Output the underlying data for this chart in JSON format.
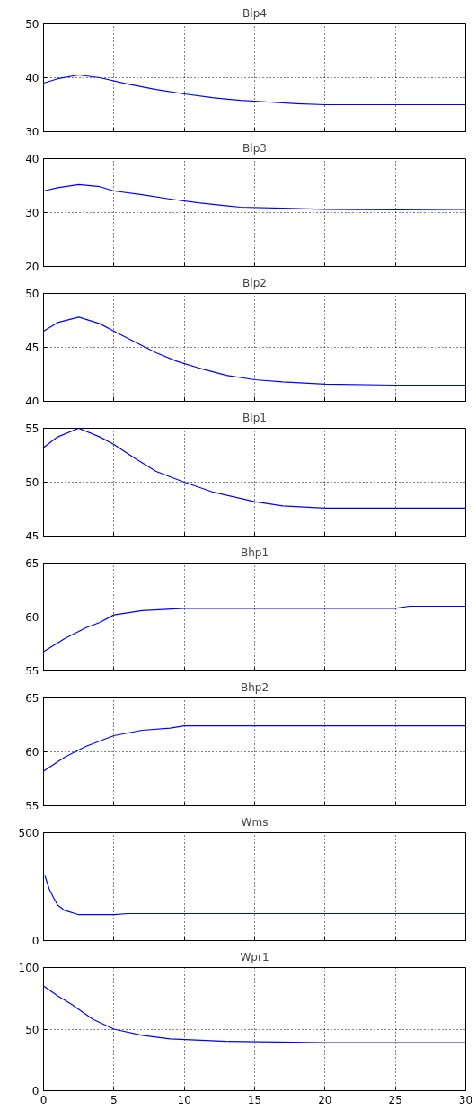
{
  "chart_data": [
    {
      "type": "line",
      "title": "Blp4",
      "xlim": [
        0,
        30
      ],
      "ylim": [
        30,
        50
      ],
      "xticks": [
        0,
        5,
        10,
        15,
        20,
        25,
        30
      ],
      "yticks": [
        30,
        40,
        50
      ],
      "grid": true,
      "tick_labels": "y",
      "series": [
        {
          "color": "#0000ff",
          "x": [
            0,
            1,
            2.5,
            4,
            6,
            8,
            10,
            12,
            14,
            16,
            18,
            20,
            25,
            30
          ],
          "values": [
            39,
            39.8,
            40.5,
            40,
            38.8,
            37.8,
            37,
            36.3,
            35.8,
            35.5,
            35.2,
            35,
            35,
            35
          ]
        }
      ]
    },
    {
      "type": "line",
      "title": "Blp3",
      "xlim": [
        0,
        30
      ],
      "ylim": [
        20,
        40
      ],
      "xticks": [
        0,
        5,
        10,
        15,
        20,
        25,
        30
      ],
      "yticks": [
        20,
        30,
        40
      ],
      "grid": true,
      "tick_labels": "y",
      "series": [
        {
          "color": "#0000ff",
          "x": [
            0,
            1,
            2.5,
            4,
            5,
            7,
            9,
            11,
            14,
            17,
            20,
            25,
            30
          ],
          "values": [
            34,
            34.6,
            35.2,
            34.8,
            34,
            33.3,
            32.5,
            31.8,
            31,
            30.8,
            30.6,
            30.5,
            30.6
          ]
        }
      ]
    },
    {
      "type": "line",
      "title": "Blp2",
      "xlim": [
        0,
        30
      ],
      "ylim": [
        40,
        50
      ],
      "xticks": [
        0,
        5,
        10,
        15,
        20,
        25,
        30
      ],
      "yticks": [
        40,
        45,
        50
      ],
      "grid": true,
      "tick_labels": "y",
      "series": [
        {
          "color": "#0000ff",
          "x": [
            0,
            1,
            2.5,
            4,
            5,
            6.5,
            8,
            9.5,
            11,
            13,
            15,
            17,
            20,
            25,
            30
          ],
          "values": [
            46.5,
            47.3,
            47.8,
            47.2,
            46.5,
            45.5,
            44.5,
            43.7,
            43.1,
            42.4,
            42,
            41.8,
            41.6,
            41.5,
            41.5
          ]
        }
      ]
    },
    {
      "type": "line",
      "title": "Blp1",
      "xlim": [
        0,
        30
      ],
      "ylim": [
        45,
        55
      ],
      "xticks": [
        0,
        5,
        10,
        15,
        20,
        25,
        30
      ],
      "yticks": [
        45,
        50,
        55
      ],
      "grid": true,
      "tick_labels": "y",
      "series": [
        {
          "color": "#0000ff",
          "x": [
            0,
            1,
            2.5,
            4,
            5,
            6.5,
            8,
            10,
            12,
            15,
            17,
            20,
            25,
            30
          ],
          "values": [
            53.2,
            54.2,
            55,
            54.2,
            53.5,
            52.2,
            51,
            50,
            49.1,
            48.2,
            47.8,
            47.6,
            47.6,
            47.6
          ]
        }
      ]
    },
    {
      "type": "line",
      "title": "Bhp1",
      "xlim": [
        0,
        30
      ],
      "ylim": [
        55,
        65
      ],
      "xticks": [
        0,
        5,
        10,
        15,
        20,
        25,
        30
      ],
      "yticks": [
        55,
        60,
        65
      ],
      "grid": true,
      "tick_labels": "y",
      "series": [
        {
          "color": "#0000ff",
          "x": [
            0,
            1.5,
            3,
            4,
            5,
            7,
            10,
            15,
            20,
            25,
            26,
            30
          ],
          "values": [
            56.8,
            58,
            59,
            59.5,
            60.2,
            60.6,
            60.8,
            60.8,
            60.8,
            60.8,
            61,
            61
          ]
        }
      ]
    },
    {
      "type": "line",
      "title": "Bhp2",
      "xlim": [
        0,
        30
      ],
      "ylim": [
        55,
        65
      ],
      "xticks": [
        0,
        5,
        10,
        15,
        20,
        25,
        30
      ],
      "yticks": [
        55,
        60,
        65
      ],
      "grid": true,
      "tick_labels": "y",
      "series": [
        {
          "color": "#0000ff",
          "x": [
            0,
            1.5,
            3,
            5,
            7,
            9,
            10,
            15,
            20,
            25,
            30
          ],
          "values": [
            58.2,
            59.5,
            60.5,
            61.5,
            62,
            62.2,
            62.4,
            62.4,
            62.4,
            62.4,
            62.4
          ]
        }
      ]
    },
    {
      "type": "line",
      "title": "Wms",
      "xlim": [
        0,
        30
      ],
      "ylim": [
        0,
        500
      ],
      "xticks": [
        0,
        5,
        10,
        15,
        20,
        25,
        30
      ],
      "yticks": [
        0,
        500
      ],
      "grid": true,
      "tick_labels": "y",
      "series": [
        {
          "color": "#0000ff",
          "x": [
            0.1,
            0.4,
            0.7,
            1,
            1.5,
            2.5,
            5,
            6,
            10,
            20,
            30
          ],
          "values": [
            300,
            240,
            200,
            165,
            140,
            120,
            120,
            125,
            125,
            125,
            125
          ]
        }
      ]
    },
    {
      "type": "line",
      "title": "Wpr1",
      "xlim": [
        0,
        30
      ],
      "ylim": [
        0,
        100
      ],
      "xticks": [
        0,
        5,
        10,
        15,
        20,
        25,
        30
      ],
      "yticks": [
        0,
        50,
        100
      ],
      "grid": true,
      "series": [
        {
          "color": "#0000ff",
          "x": [
            0,
            1,
            2,
            3.5,
            5,
            7,
            9,
            13,
            20,
            30
          ],
          "values": [
            85,
            77,
            70,
            58,
            50,
            45,
            42,
            40,
            39,
            39
          ]
        }
      ]
    }
  ]
}
